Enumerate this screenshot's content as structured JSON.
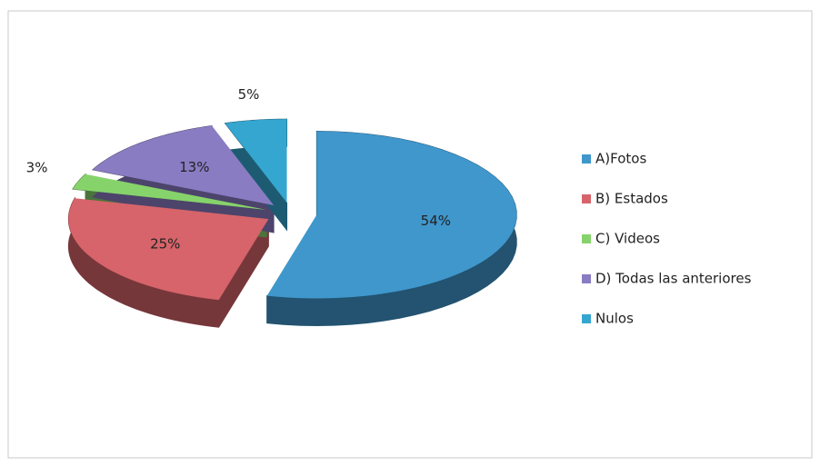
{
  "chart_data": {
    "type": "pie",
    "categories": [
      "A)Fotos",
      "B) Estados",
      "C) Videos",
      "D) Todas las anteriores",
      "Nulos"
    ],
    "values": [
      54,
      25,
      3,
      13,
      5
    ],
    "value_labels": [
      "54%",
      "25%",
      "3%",
      "13%",
      "5%"
    ],
    "colors": [
      "#3f97cc",
      "#d6646a",
      "#86d36b",
      "#8a7cc2",
      "#35a6d0"
    ],
    "legend": "right"
  }
}
